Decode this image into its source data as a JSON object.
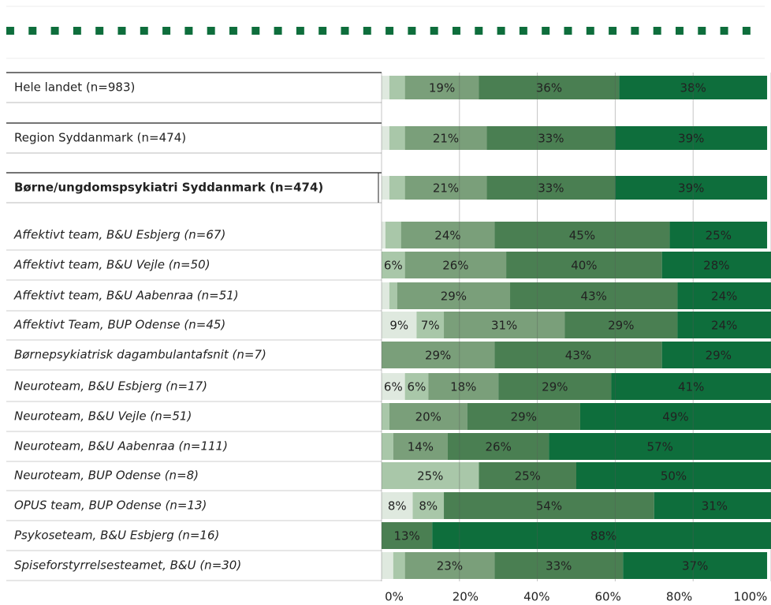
{
  "chart_data": {
    "type": "stacked-barh",
    "categories": [
      "Hele landet (n=983)",
      "Region Syddanmark (n=474)",
      "Børne/ungdomspsykiatri Syddanmark (n=474)",
      "Affektivt team, B&U Esbjerg (n=67)",
      "Affektivt team, B&U Vejle (n=50)",
      "Affektivt team, B&U Aabenraa (n=51)",
      "Affektivt Team, BUP Odense (n=45)",
      "Børnepsykiatrisk dagambulantafsnit (n=7)",
      "Neuroteam, B&U Esbjerg (n=17)",
      "Neuroteam, B&U Vejle (n=51)",
      "Neuroteam, B&U Aabenraa (n=111)",
      "Neuroteam, BUP Odense (n=8)",
      "OPUS team, BUP Odense (n=13)",
      "Psykoseteam, B&U Esbjerg (n=16)",
      "Spiseforstyrrelsesteamet, B&U (n=30)"
    ],
    "series": [
      {
        "color": "#dfe9df",
        "values": [
          2,
          2,
          2,
          1,
          null,
          2,
          9,
          null,
          6,
          null,
          null,
          null,
          8,
          null,
          3
        ],
        "value_labels": [
          null,
          null,
          null,
          null,
          null,
          null,
          "9%",
          null,
          "6%",
          null,
          null,
          null,
          "8%",
          null,
          null
        ]
      },
      {
        "color": "#a9c7a9",
        "values": [
          4,
          4,
          4,
          4,
          6,
          2,
          7,
          null,
          6,
          2,
          3,
          25,
          8,
          null,
          3
        ],
        "value_labels": [
          null,
          null,
          null,
          null,
          "6%",
          null,
          "7%",
          null,
          "6%",
          null,
          null,
          "25%",
          "8%",
          null,
          null
        ]
      },
      {
        "color": "#7a9f7a",
        "values": [
          19,
          21,
          21,
          24,
          26,
          29,
          31,
          29,
          18,
          20,
          14,
          null,
          null,
          null,
          23
        ],
        "value_labels": [
          "19%",
          "21%",
          "21%",
          "24%",
          "26%",
          "29%",
          "31%",
          "29%",
          "18%",
          "20%",
          "14%",
          null,
          null,
          null,
          "23%"
        ]
      },
      {
        "color": "#4a7f52",
        "values": [
          36,
          33,
          33,
          45,
          40,
          43,
          29,
          43,
          29,
          29,
          26,
          25,
          54,
          13,
          33
        ],
        "value_labels": [
          "36%",
          "33%",
          "33%",
          "45%",
          "40%",
          "43%",
          "29%",
          "43%",
          "29%",
          "29%",
          "26%",
          "25%",
          "54%",
          "13%",
          "33%"
        ]
      },
      {
        "color": "#0e6e3c",
        "values": [
          38,
          39,
          39,
          25,
          28,
          24,
          24,
          29,
          41,
          49,
          57,
          50,
          31,
          88,
          37
        ],
        "value_labels": [
          "38%",
          "39%",
          "39%",
          "25%",
          "28%",
          "24%",
          "24%",
          "29%",
          "41%",
          "49%",
          "57%",
          "50%",
          "31%",
          "88%",
          "37%"
        ]
      }
    ],
    "xlim": [
      0,
      100
    ],
    "xticks": [
      {
        "value": 0,
        "label": "0%"
      },
      {
        "value": 20,
        "label": "20%"
      },
      {
        "value": 40,
        "label": "40%"
      },
      {
        "value": 60,
        "label": "60%"
      },
      {
        "value": 80,
        "label": "80%"
      },
      {
        "value": 100,
        "label": "100%"
      }
    ]
  }
}
